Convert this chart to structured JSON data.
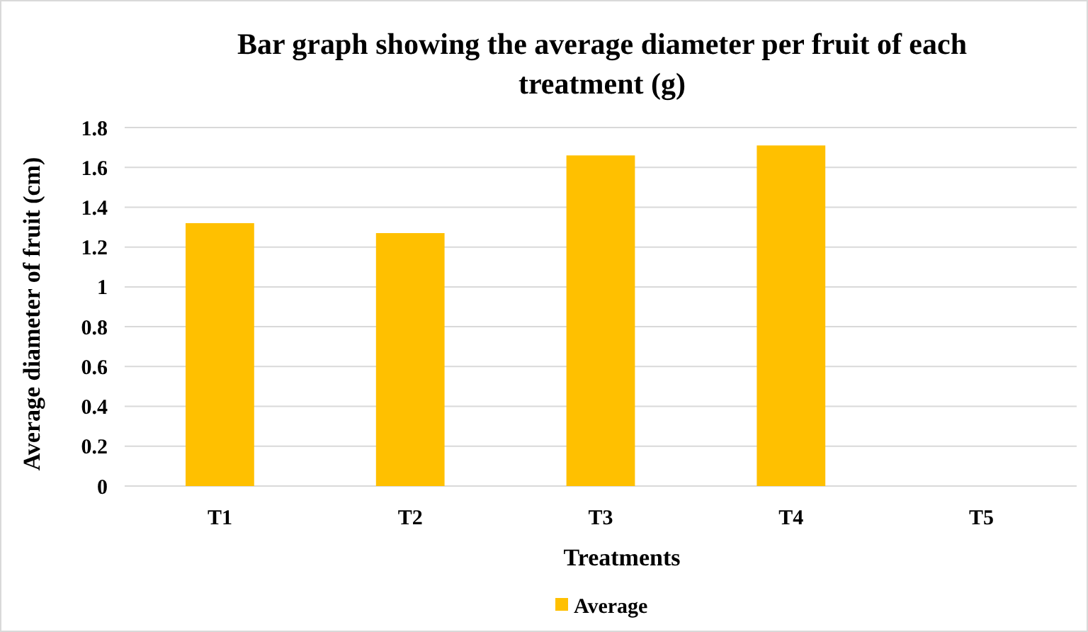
{
  "chart_data": {
    "type": "bar",
    "title": "Bar graph showing the average diameter per fruit of each treatment (g)",
    "xlabel": "Treatments",
    "ylabel": "Average diameter of fruit (cm)",
    "categories": [
      "T1",
      "T2",
      "T3",
      "T4",
      "T5"
    ],
    "series": [
      {
        "name": "Average",
        "color": "#ffc000",
        "values": [
          1.32,
          1.27,
          1.66,
          1.71,
          null
        ]
      }
    ],
    "ylim": [
      0,
      1.8
    ],
    "yticks": [
      0,
      {
        "value": 0.2,
        "label": "0.2"
      },
      {
        "value": 0.4,
        "label": "0.4"
      },
      {
        "value": 0.6,
        "label": "0.6"
      },
      {
        "value": 0.8,
        "label": "0.8"
      },
      1,
      {
        "value": 1.2,
        "label": "1.2"
      },
      {
        "value": 1.4,
        "label": "1.4"
      },
      {
        "value": 1.6,
        "label": "1.6"
      },
      {
        "value": 1.8,
        "label": "1.8"
      }
    ],
    "grid": "y",
    "legend": "bottom"
  }
}
